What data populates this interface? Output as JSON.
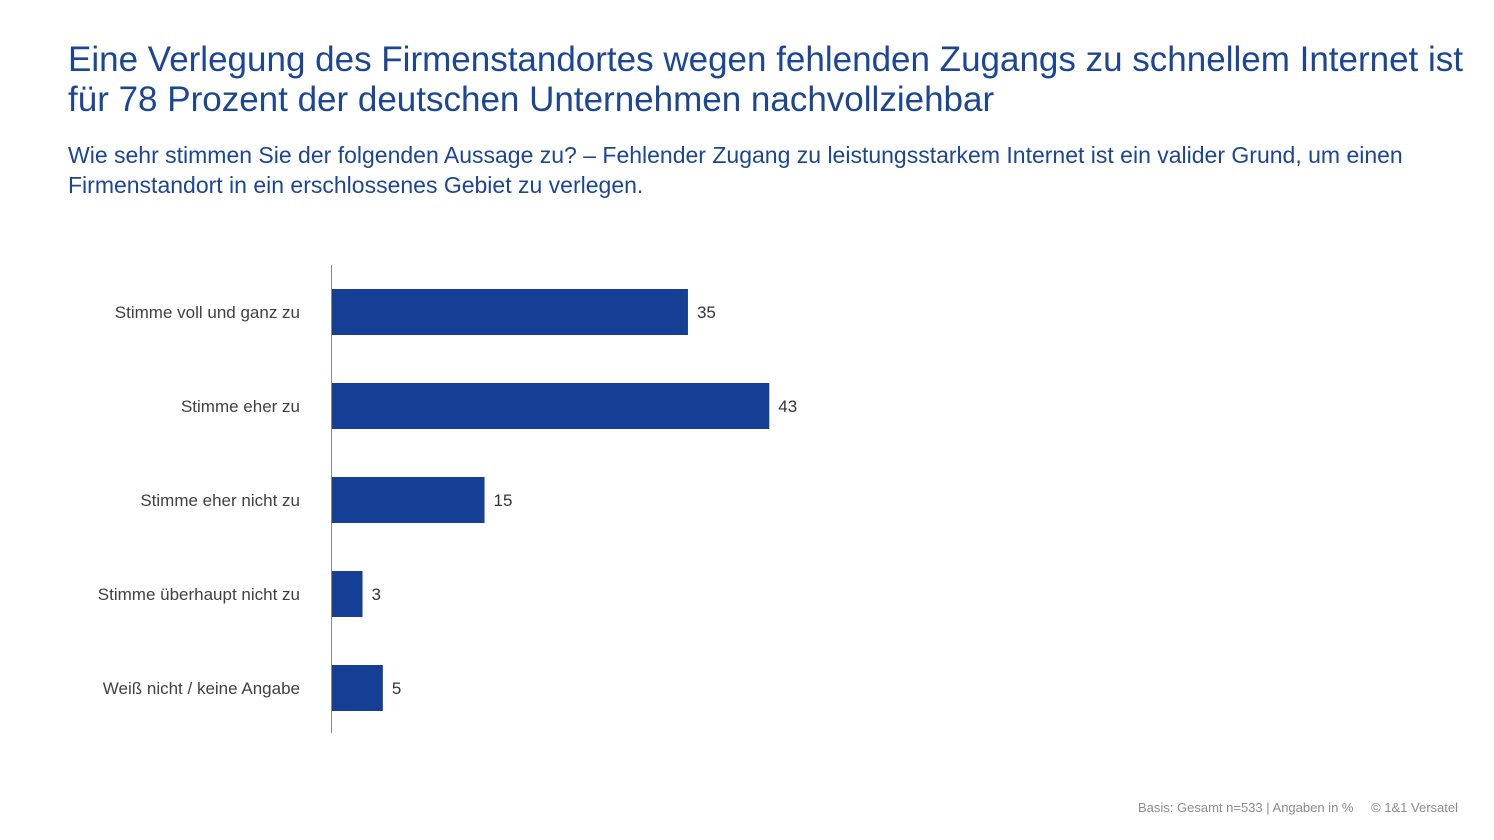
{
  "title": "Eine Verlegung des Firmenstandortes wegen fehlenden Zugangs zu schnellem Internet ist für 78 Prozent der deutschen Unternehmen nachvollziehbar",
  "subtitle": "Wie sehr stimmen Sie der folgenden Aussage zu? – Fehlender Zugang zu leistungsstarkem Internet ist ein valider Grund, um einen Firmenstandort in ein erschlossenes Gebiet zu verlegen.",
  "footer": {
    "basis": "Basis: Gesamt n=533 | Angaben in %",
    "copyright": "© 1&1 Versatel"
  },
  "colors": {
    "bar": "#143F94",
    "title": "#1B4595",
    "label": "#404040"
  },
  "chart_data": {
    "type": "bar",
    "orientation": "horizontal",
    "categories": [
      "Stimme voll und ganz zu",
      "Stimme eher zu",
      "Stimme eher nicht zu",
      "Stimme überhaupt nicht zu",
      "Weiß nicht / keine Angabe"
    ],
    "values": [
      35,
      43,
      15,
      3,
      5
    ],
    "data_labels": [
      "35",
      "43",
      "15",
      "3",
      "5"
    ],
    "xlim": [
      0,
      50
    ],
    "grid": false,
    "legend": "none"
  }
}
